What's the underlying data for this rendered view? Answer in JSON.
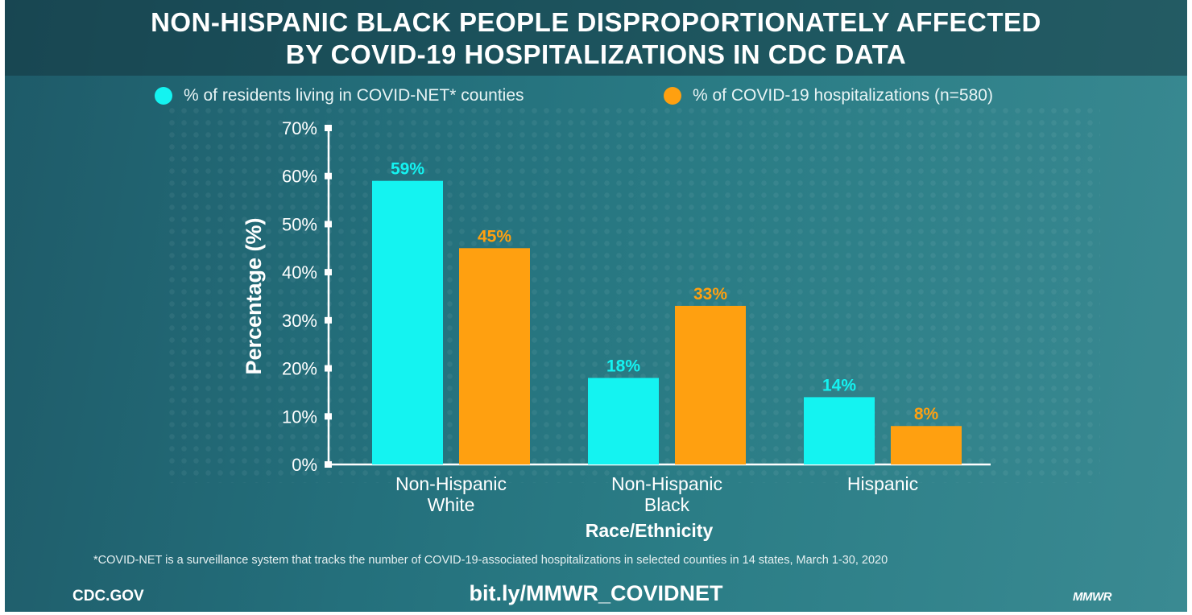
{
  "title": {
    "line1": "NON-HISPANIC BLACK PEOPLE DISPROPORTIONATELY AFFECTED",
    "line2": "BY COVID-19 HOSPITALIZATIONS IN CDC DATA"
  },
  "colors": {
    "series1": "#14f3f1",
    "series2": "#ffa010"
  },
  "chart_data": {
    "type": "bar",
    "categories": [
      [
        "Non-Hispanic",
        "White"
      ],
      [
        "Non-Hispanic",
        "Black"
      ],
      [
        "Hispanic"
      ]
    ],
    "series": [
      {
        "name": "% of residents living in COVID-NET* counties",
        "values": [
          59,
          18,
          14
        ],
        "labels": [
          "59%",
          "18%",
          "14%"
        ]
      },
      {
        "name": "% of COVID-19 hospitalizations (n=580)",
        "values": [
          45,
          33,
          8
        ],
        "labels": [
          "45%",
          "33%",
          "8%"
        ]
      }
    ],
    "xlabel": "Race/Ethnicity",
    "ylabel": "Percentage (%)",
    "ylim": [
      0,
      70
    ],
    "yticks": [
      0,
      10,
      20,
      30,
      40,
      50,
      60,
      70
    ],
    "ytick_labels": [
      "0%",
      "10%",
      "20%",
      "30%",
      "40%",
      "50%",
      "60%",
      "70%"
    ],
    "legend": "top"
  },
  "footnote": "*COVID-NET is a surveillance system that tracks the number of COVID-19-associated hospitalizations in selected counties in 14 states, March 1-30, 2020",
  "footer": {
    "left": "CDC.GOV",
    "center": "bit.ly/MMWR_COVIDNET",
    "right": "MMWR"
  }
}
